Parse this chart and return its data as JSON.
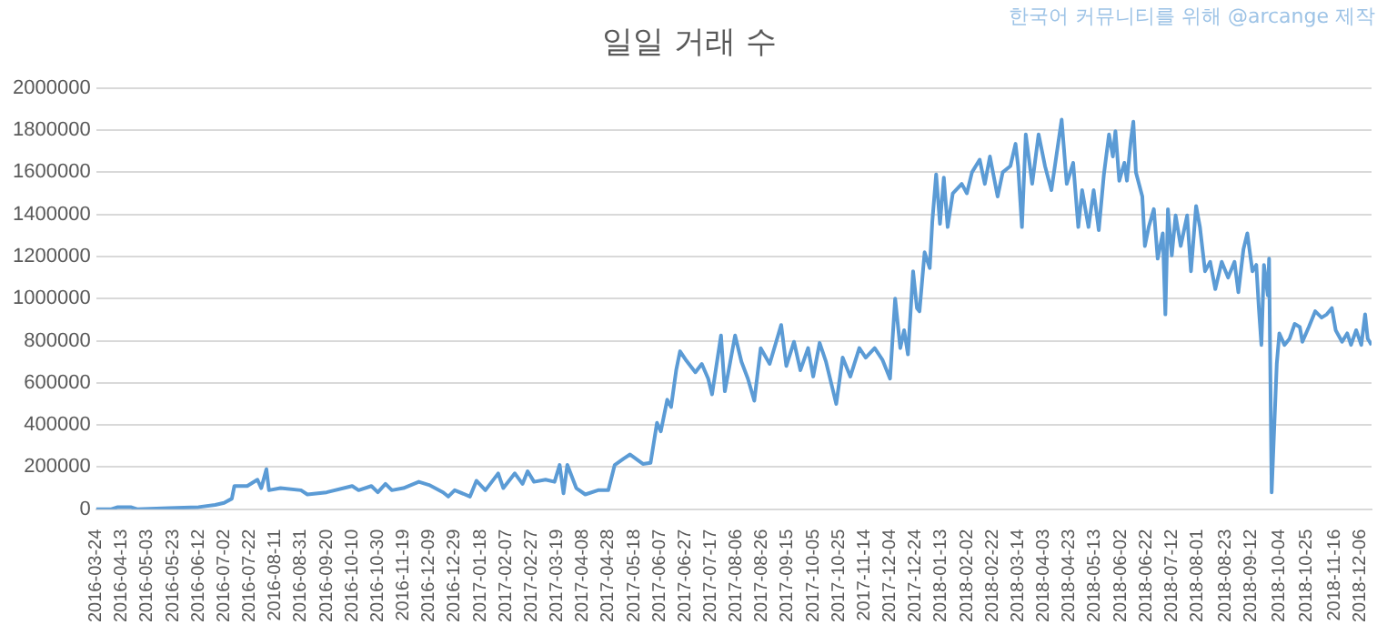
{
  "chart_data": {
    "type": "line",
    "title": "일일 거래 수",
    "annotations": [
      "한국어 커뮤니티를 위해 @arcange 제작"
    ],
    "x": [
      "2016-03-24",
      "2016-04-05",
      "2016-04-10",
      "2016-04-20",
      "2016-04-25",
      "2016-05-20",
      "2016-06-12",
      "2016-06-25",
      "2016-07-02",
      "2016-07-08",
      "2016-07-10",
      "2016-07-20",
      "2016-07-28",
      "2016-07-31",
      "2016-08-04",
      "2016-08-06",
      "2016-08-15",
      "2016-08-31",
      "2016-09-05",
      "2016-09-20",
      "2016-10-10",
      "2016-10-15",
      "2016-10-25",
      "2016-10-30",
      "2016-11-05",
      "2016-11-10",
      "2016-11-19",
      "2016-12-01",
      "2016-12-09",
      "2016-12-20",
      "2016-12-24",
      "2016-12-29",
      "2017-01-10",
      "2017-01-15",
      "2017-01-22",
      "2017-02-01",
      "2017-02-05",
      "2017-02-14",
      "2017-02-20",
      "2017-02-24",
      "2017-03-01",
      "2017-03-10",
      "2017-03-17",
      "2017-03-21",
      "2017-03-24",
      "2017-03-27",
      "2017-04-03",
      "2017-04-10",
      "2017-04-20",
      "2017-04-28",
      "2017-05-03",
      "2017-05-10",
      "2017-05-15",
      "2017-05-25",
      "2017-05-31",
      "2017-06-05",
      "2017-06-08",
      "2017-06-13",
      "2017-06-16",
      "2017-06-20",
      "2017-06-23",
      "2017-06-28",
      "2017-07-05",
      "2017-07-10",
      "2017-07-15",
      "2017-07-18",
      "2017-07-25",
      "2017-07-28",
      "2017-08-05",
      "2017-08-10",
      "2017-08-15",
      "2017-08-20",
      "2017-08-25",
      "2017-09-01",
      "2017-09-10",
      "2017-09-14",
      "2017-09-20",
      "2017-09-25",
      "2017-10-01",
      "2017-10-05",
      "2017-10-10",
      "2017-10-15",
      "2017-10-20",
      "2017-10-23",
      "2017-10-28",
      "2017-11-03",
      "2017-11-10",
      "2017-11-15",
      "2017-11-22",
      "2017-11-28",
      "2017-12-04",
      "2017-12-08",
      "2017-12-12",
      "2017-12-15",
      "2017-12-18",
      "2017-12-22",
      "2017-12-25",
      "2017-12-27",
      "2017-12-31",
      "2018-01-04",
      "2018-01-06",
      "2018-01-09",
      "2018-01-12",
      "2018-01-15",
      "2018-01-18",
      "2018-01-22",
      "2018-01-29",
      "2018-02-02",
      "2018-02-06",
      "2018-02-12",
      "2018-02-16",
      "2018-02-20",
      "2018-02-26",
      "2018-03-02",
      "2018-03-08",
      "2018-03-12",
      "2018-03-14",
      "2018-03-17",
      "2018-03-20",
      "2018-03-25",
      "2018-03-30",
      "2018-04-04",
      "2018-04-09",
      "2018-04-17",
      "2018-04-21",
      "2018-04-26",
      "2018-04-30",
      "2018-05-03",
      "2018-05-08",
      "2018-05-12",
      "2018-05-16",
      "2018-05-20",
      "2018-05-24",
      "2018-05-27",
      "2018-05-29",
      "2018-06-01",
      "2018-06-05",
      "2018-06-07",
      "2018-06-10",
      "2018-06-12",
      "2018-06-14",
      "2018-06-19",
      "2018-06-21",
      "2018-06-24",
      "2018-06-28",
      "2018-07-01",
      "2018-07-05",
      "2018-07-07",
      "2018-07-09",
      "2018-07-12",
      "2018-07-15",
      "2018-07-19",
      "2018-07-24",
      "2018-07-27",
      "2018-07-31",
      "2018-08-03",
      "2018-08-07",
      "2018-08-11",
      "2018-08-15",
      "2018-08-20",
      "2018-08-25",
      "2018-08-30",
      "2018-09-02",
      "2018-09-06",
      "2018-09-09",
      "2018-09-13",
      "2018-09-16",
      "2018-09-18",
      "2018-09-20",
      "2018-09-22",
      "2018-09-25",
      "2018-09-26",
      "2018-09-28",
      "2018-10-02",
      "2018-10-04",
      "2018-10-08",
      "2018-10-12",
      "2018-10-16",
      "2018-10-20",
      "2018-10-22",
      "2018-10-27",
      "2018-11-01",
      "2018-11-06",
      "2018-11-10",
      "2018-11-14",
      "2018-11-17",
      "2018-11-22",
      "2018-11-26",
      "2018-11-29",
      "2018-12-03",
      "2018-12-07",
      "2018-12-10",
      "2018-12-12",
      "2018-12-15"
    ],
    "series": [
      {
        "color": "#5b9bd5",
        "values": [
          0,
          0,
          10000,
          10000,
          0,
          5000,
          10000,
          20000,
          30000,
          50000,
          110000,
          110000,
          140000,
          100000,
          190000,
          90000,
          100000,
          90000,
          70000,
          80000,
          110000,
          90000,
          110000,
          80000,
          120000,
          90000,
          100000,
          130000,
          115000,
          80000,
          60000,
          90000,
          60000,
          135000,
          90000,
          170000,
          100000,
          170000,
          120000,
          180000,
          130000,
          140000,
          130000,
          210000,
          75000,
          210000,
          100000,
          70000,
          90000,
          90000,
          210000,
          240000,
          260000,
          215000,
          220000,
          410000,
          370000,
          520000,
          485000,
          660000,
          750000,
          705000,
          650000,
          690000,
          620000,
          545000,
          825000,
          560000,
          825000,
          700000,
          620000,
          515000,
          765000,
          690000,
          875000,
          680000,
          795000,
          660000,
          765000,
          630000,
          790000,
          700000,
          575000,
          500000,
          720000,
          630000,
          765000,
          720000,
          765000,
          710000,
          620000,
          1000000,
          765000,
          850000,
          735000,
          1130000,
          955000,
          940000,
          1220000,
          1145000,
          1365000,
          1590000,
          1355000,
          1575000,
          1340000,
          1500000,
          1545000,
          1500000,
          1600000,
          1660000,
          1545000,
          1675000,
          1485000,
          1600000,
          1630000,
          1735000,
          1630000,
          1340000,
          1780000,
          1545000,
          1780000,
          1630000,
          1515000,
          1850000,
          1545000,
          1645000,
          1340000,
          1515000,
          1340000,
          1515000,
          1325000,
          1590000,
          1780000,
          1675000,
          1795000,
          1560000,
          1645000,
          1560000,
          1750000,
          1840000,
          1600000,
          1485000,
          1250000,
          1340000,
          1425000,
          1190000,
          1310000,
          925000,
          1425000,
          1205000,
          1395000,
          1250000,
          1395000,
          1130000,
          1440000,
          1340000,
          1130000,
          1175000,
          1045000,
          1175000,
          1100000,
          1175000,
          1030000,
          1235000,
          1310000,
          1130000,
          1160000,
          955000,
          780000,
          1160000,
          1015000,
          1190000,
          80000,
          690000,
          835000,
          780000,
          810000,
          880000,
          865000,
          795000,
          865000,
          940000,
          910000,
          925000,
          955000,
          850000,
          795000,
          835000,
          780000,
          850000,
          780000,
          925000,
          810000,
          780000
        ]
      }
    ],
    "xlim": [
      "2016-03-24",
      "2018-12-15"
    ],
    "xticks": [
      "2016-03-24",
      "2016-04-13",
      "2016-05-03",
      "2016-05-23",
      "2016-06-12",
      "2016-07-02",
      "2016-07-22",
      "2016-08-11",
      "2016-08-31",
      "2016-09-20",
      "2016-10-10",
      "2016-10-30",
      "2016-11-19",
      "2016-12-09",
      "2016-12-29",
      "2017-01-18",
      "2017-02-07",
      "2017-02-27",
      "2017-03-19",
      "2017-04-08",
      "2017-04-28",
      "2017-05-18",
      "2017-06-07",
      "2017-06-27",
      "2017-07-17",
      "2017-08-06",
      "2017-08-26",
      "2017-09-15",
      "2017-10-05",
      "2017-10-25",
      "2017-11-14",
      "2017-12-04",
      "2017-12-24",
      "2018-01-13",
      "2018-02-02",
      "2018-02-22",
      "2018-03-14",
      "2018-04-03",
      "2018-04-23",
      "2018-05-13",
      "2018-06-02",
      "2018-06-22",
      "2018-07-12",
      "2018-08-01",
      "2018-08-23",
      "2018-09-12",
      "2018-10-04",
      "2018-10-25",
      "2018-11-16",
      "2018-12-06"
    ],
    "ylim": [
      0,
      2000000
    ],
    "yticks": [
      0,
      200000,
      400000,
      600000,
      800000,
      1000000,
      1200000,
      1400000,
      1600000,
      1800000,
      2000000
    ],
    "grid": "y"
  }
}
